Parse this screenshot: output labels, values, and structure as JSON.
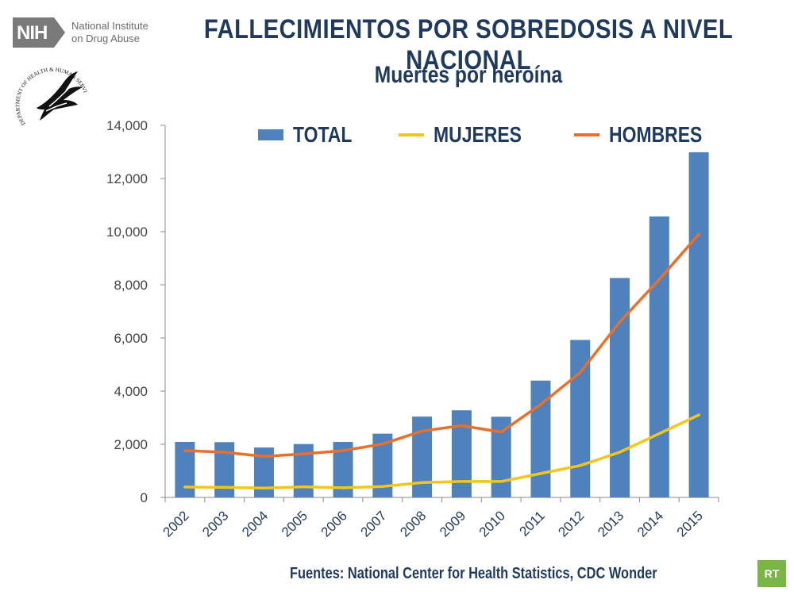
{
  "header": {
    "nih_abbrev": "NIH",
    "nih_name": "National Institute on Drug Abuse",
    "hhs_seal_text": "DEPARTMENT OF HEALTH & HUMAN SERVICES · USA"
  },
  "colors": {
    "total": "#4f81bd",
    "mujeres": "#f5c518",
    "hombres": "#e8702a",
    "title": "#1f3a5f",
    "nih_box": "#7a7a7a",
    "rt_badge": "#7ab547"
  },
  "source": "Fuentes: National Center for Health Statistics, CDC Wonder",
  "rt_badge": "RT",
  "chart_data": {
    "type": "bar",
    "title": "FALLECIMIENTOS POR SOBREDOSIS A NIVEL NACIONAL",
    "subtitle": "Muertes por heroína",
    "categories": [
      "2002",
      "2003",
      "2004",
      "2005",
      "2006",
      "2007",
      "2008",
      "2009",
      "2010",
      "2011",
      "2012",
      "2013",
      "2014",
      "2015"
    ],
    "series": [
      {
        "name": "TOTAL",
        "kind": "bar",
        "values": [
          2089,
          2080,
          1878,
          2009,
          2088,
          2399,
          3041,
          3278,
          3036,
          4397,
          5925,
          8257,
          10574,
          12989
        ]
      },
      {
        "name": "MUJERES",
        "kind": "line",
        "values": [
          390,
          380,
          350,
          400,
          360,
          410,
          560,
          600,
          600,
          900,
          1200,
          1700,
          2400,
          3100
        ]
      },
      {
        "name": "HOMBRES",
        "kind": "line",
        "values": [
          1760,
          1700,
          1540,
          1640,
          1760,
          2010,
          2500,
          2700,
          2460,
          3500,
          4700,
          6600,
          8200,
          9900
        ]
      }
    ],
    "yticks": [
      "0",
      "2,000",
      "4,000",
      "6,000",
      "8,000",
      "10,000",
      "12,000",
      "14,000"
    ],
    "ylim": [
      0,
      14000
    ],
    "xlabel": "",
    "ylabel": "",
    "legend": [
      "TOTAL",
      "MUJERES",
      "HOMBRES"
    ]
  }
}
